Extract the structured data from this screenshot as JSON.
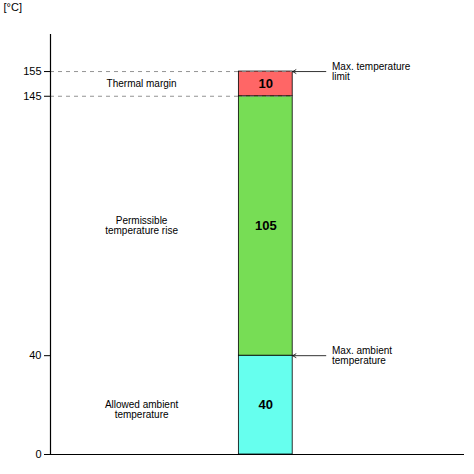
{
  "chart_data": {
    "type": "bar",
    "stacked": true,
    "ylabel": "[°C]",
    "ylim": [
      0,
      170
    ],
    "yticks": [
      0,
      40,
      145,
      155
    ],
    "categories": [
      null
    ],
    "series": [
      {
        "color": "#66FFEE",
        "values": [
          40
        ]
      },
      {
        "color": "#77DD55",
        "values": [
          105
        ]
      },
      {
        "color": "#FF6666",
        "values": [
          10
        ]
      }
    ],
    "data_labels": true,
    "tick_labels": "y",
    "grid": false,
    "reference_lines": [
      155,
      145
    ],
    "annotations": [
      {
        "text": "Thermal margin",
        "y": 150
      },
      {
        "text": "Permissible\ntemperature rise",
        "y": 92.5
      },
      {
        "text": "Allowed ambient\ntemperature",
        "y": 18
      }
    ],
    "arrow_annotations": [
      {
        "text": "Max. temperature\nlimit",
        "y": 155
      },
      {
        "text": "Max. ambient\ntemperature",
        "y": 40
      }
    ]
  }
}
